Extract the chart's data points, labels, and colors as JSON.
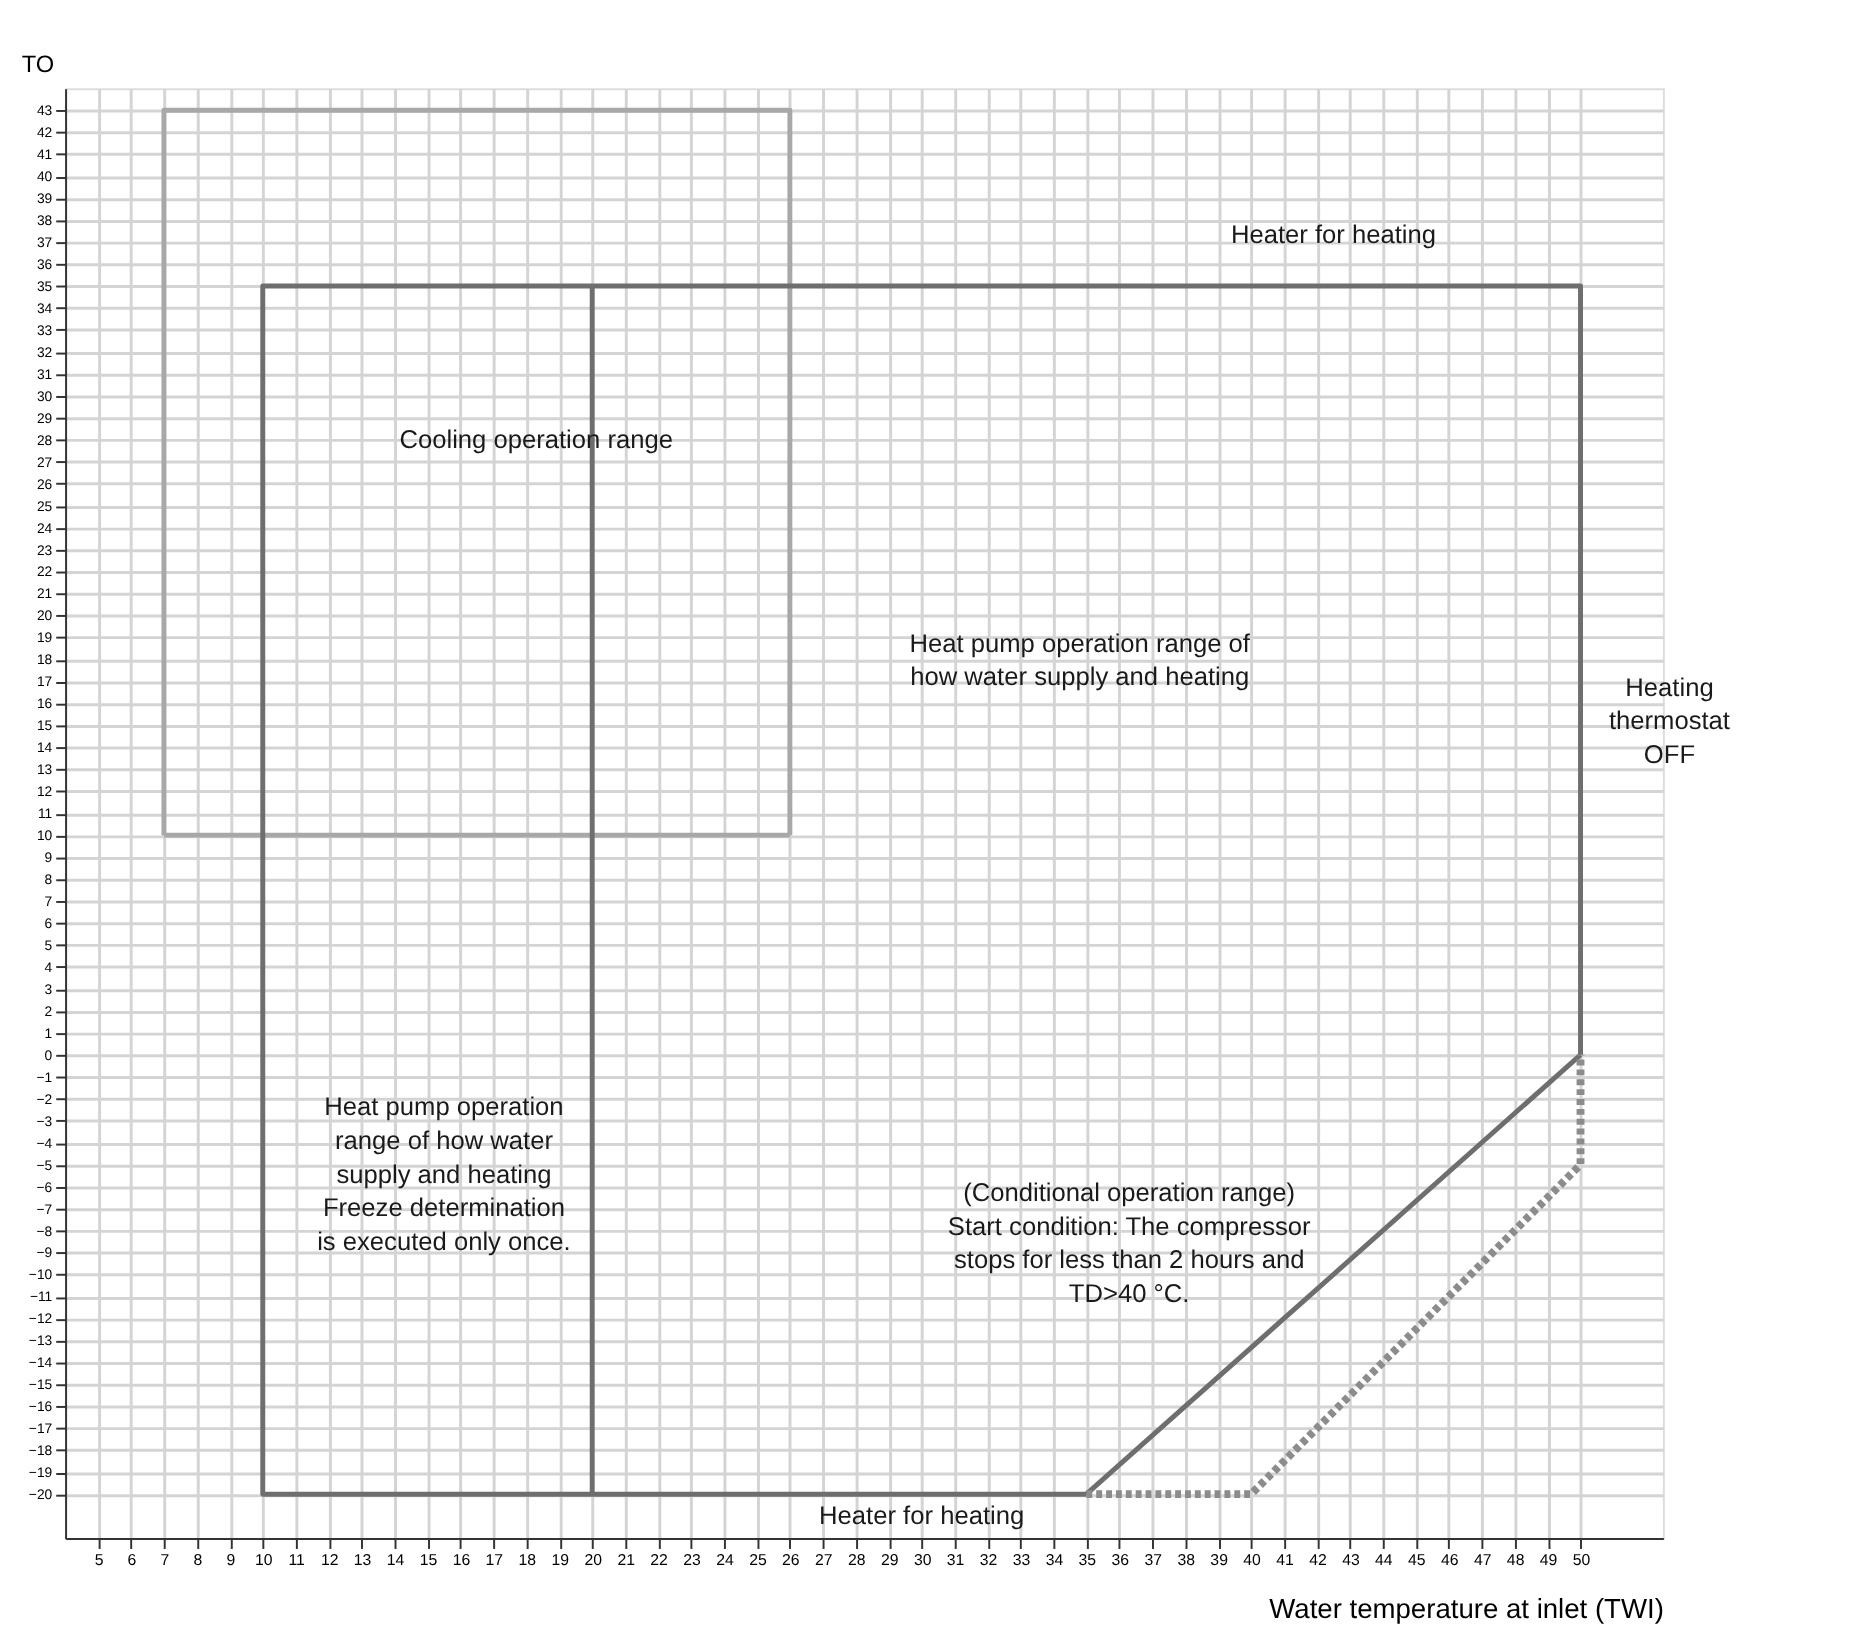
{
  "chart_data": {
    "type": "line",
    "xlabel": "Water temperature at inlet (TWI)",
    "ylabel": "TO",
    "xlim": [
      4,
      52.5
    ],
    "ylim": [
      -22,
      44
    ],
    "xticks": [
      5,
      6,
      7,
      8,
      9,
      10,
      11,
      12,
      13,
      14,
      15,
      16,
      17,
      18,
      19,
      20,
      21,
      22,
      23,
      24,
      25,
      26,
      27,
      28,
      29,
      30,
      31,
      32,
      33,
      34,
      35,
      36,
      37,
      38,
      39,
      40,
      41,
      42,
      43,
      44,
      45,
      46,
      47,
      48,
      49,
      50
    ],
    "yticks": [
      -20,
      -19,
      -18,
      -17,
      -16,
      -15,
      -14,
      -13,
      -12,
      -11,
      -10,
      -9,
      -8,
      -7,
      -6,
      -5,
      -4,
      -3,
      -2,
      -1,
      0,
      1,
      2,
      3,
      4,
      5,
      6,
      7,
      8,
      9,
      10,
      11,
      12,
      13,
      14,
      15,
      16,
      17,
      18,
      19,
      20,
      21,
      22,
      23,
      24,
      25,
      26,
      27,
      28,
      29,
      30,
      31,
      32,
      33,
      34,
      35,
      36,
      37,
      38,
      39,
      40,
      41,
      42,
      43
    ],
    "grid": true,
    "series": [
      {
        "color": "#a8a8a8",
        "line_style": "solid",
        "x": [
          7,
          7,
          26,
          26
        ],
        "values": [
          10,
          43,
          43,
          10
        ]
      },
      {
        "color": "#a8a8a8",
        "line_style": "solid",
        "x": [
          7,
          26
        ],
        "values": [
          10,
          10
        ]
      },
      {
        "color": "#6e6e6e",
        "line_style": "solid",
        "x": [
          35,
          10,
          10,
          50,
          50
        ],
        "values": [
          -20,
          -20,
          35,
          35,
          0
        ]
      },
      {
        "color": "#6e6e6e",
        "line_style": "solid",
        "x": [
          20,
          20
        ],
        "values": [
          35,
          -20
        ]
      },
      {
        "color": "#6e6e6e",
        "line_style": "solid",
        "x": [
          35,
          50
        ],
        "values": [
          -20,
          0
        ]
      },
      {
        "color": "#8c8c8c",
        "line_style": "dotted",
        "x": [
          35,
          40,
          50,
          50
        ],
        "values": [
          -20,
          -20,
          -5,
          0
        ]
      }
    ],
    "annotations": [
      "Cooling operation range",
      "Heat pump operation range of\nhow water supply and heating",
      "Heat pump operation\nrange of how water\nsupply and heating\nFreeze determination\nis executed only once.",
      "(Conditional operation range)\nStart condition: The compressor\nstops for less than 2 hours and\nTD>40 °C.",
      "Heater for heating",
      "Heater for heating",
      "Heating\nthermostat\nOFF"
    ]
  }
}
